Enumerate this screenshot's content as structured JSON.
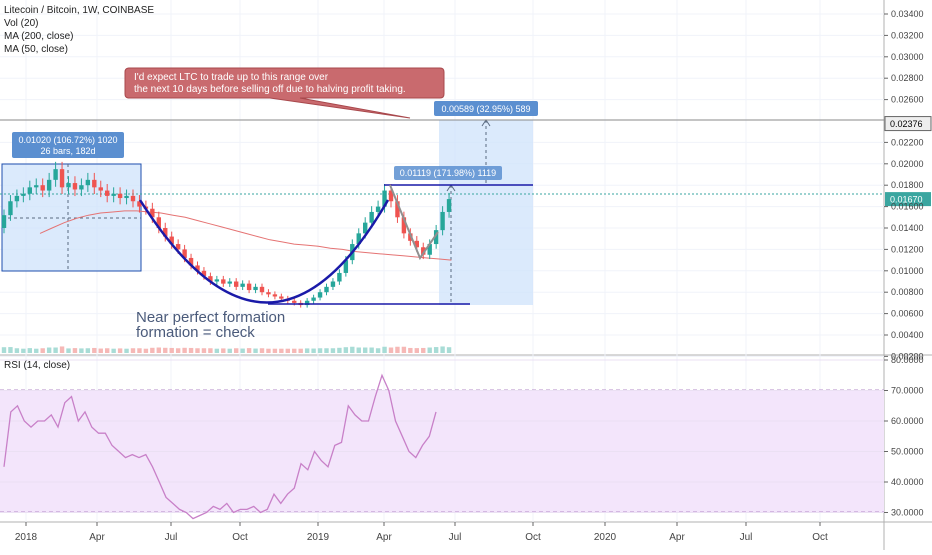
{
  "header": {
    "symbol_line": "Litecoin / Bitcoin, 1W, COINBASE",
    "indicators": [
      "Vol (20)",
      "MA (200, close)",
      "MA (50, close)"
    ],
    "rsi_label": "RSI (14, close)"
  },
  "annotations": {
    "callout_line1": "I'd expect LTC to trade up to this range over",
    "callout_line2": "the next 10 days before selling off due to halving profit taking.",
    "range_box_line1": "0.01020 (106.72%) 1020",
    "range_box_line2": "26 bars, 182d",
    "target_label": "0.00589 (32.95%) 589",
    "breakout_label": "0.01119 (171.98%) 1119",
    "note_line1": "Near perfect formation",
    "note_line2": "formation = check"
  },
  "price_axis": {
    "ticks": [
      "0.03400",
      "0.03200",
      "0.03000",
      "0.02800",
      "0.02600",
      "0.02376",
      "0.02200",
      "0.02000",
      "0.01800",
      "0.01670",
      "0.01600",
      "0.01400",
      "0.01200",
      "0.01000",
      "0.00800",
      "0.00600",
      "0.00400",
      "0.00200"
    ],
    "highlight_gray": "0.02376",
    "highlight_teal": "0.01670"
  },
  "rsi_axis": {
    "ticks": [
      "80.0000",
      "70.0000",
      "60.0000",
      "50.0000",
      "40.0000",
      "30.0000"
    ]
  },
  "time_axis": {
    "ticks": [
      "2018",
      "Apr",
      "Jul",
      "Oct",
      "2019",
      "Apr",
      "Jul",
      "Oct",
      "2020",
      "Apr",
      "Jul",
      "Oct"
    ]
  },
  "colors": {
    "up": "#26a69a",
    "down": "#ef5350",
    "cup": "#1a1aa8",
    "ma": "#e57373",
    "rsi": "#c880c8",
    "rsi_band": "#f3e5fb",
    "box": "#c8defa",
    "callout": "#c96a6e",
    "teal_line": "#3aa6a0"
  },
  "chart_data": [
    {
      "type": "candlestick",
      "title": "Litecoin / Bitcoin, 1W, COINBASE",
      "ylim": [
        0.002,
        0.035
      ],
      "x_axis_ticks": [
        "2018",
        "Apr",
        "Jul",
        "Oct",
        "2019",
        "Apr",
        "Jul",
        "Oct",
        "2020",
        "Apr",
        "Jul",
        "Oct"
      ],
      "close": [
        0.0152,
        0.0165,
        0.017,
        0.0172,
        0.0178,
        0.018,
        0.0175,
        0.0185,
        0.0195,
        0.0178,
        0.0182,
        0.0176,
        0.018,
        0.0185,
        0.0178,
        0.0175,
        0.017,
        0.0172,
        0.0168,
        0.017,
        0.0165,
        0.016,
        0.0158,
        0.015,
        0.014,
        0.0132,
        0.0125,
        0.012,
        0.0112,
        0.0105,
        0.01,
        0.0095,
        0.009,
        0.0092,
        0.0088,
        0.009,
        0.0085,
        0.0088,
        0.0082,
        0.0085,
        0.008,
        0.0078,
        0.0076,
        0.0074,
        0.0072,
        0.007,
        0.0068,
        0.0072,
        0.0075,
        0.008,
        0.0085,
        0.009,
        0.0098,
        0.011,
        0.0125,
        0.0135,
        0.0145,
        0.0155,
        0.016,
        0.0175,
        0.0165,
        0.015,
        0.0135,
        0.0128,
        0.0122,
        0.0115,
        0.0125,
        0.0138,
        0.0155,
        0.0167
      ],
      "ma50": [
        0.0135,
        0.014,
        0.0145,
        0.0149,
        0.0152,
        0.0154,
        0.0155,
        0.0156,
        0.0156,
        0.0155,
        0.0154,
        0.0152,
        0.015,
        0.0147,
        0.0144,
        0.0141,
        0.0138,
        0.0135,
        0.0132,
        0.0129,
        0.0127,
        0.0125,
        0.0124,
        0.0123,
        0.0121,
        0.012,
        0.0118,
        0.0117,
        0.0116,
        0.0115,
        0.0114,
        0.0113,
        0.0112,
        0.0111,
        0.011
      ],
      "annotations": {
        "range_measure": "0.01020 (106.72%) 1020, 26 bars, 182d",
        "target_measure": "0.00589 (32.95%) 589",
        "breakout_measure": "0.01119 (171.98%) 1119"
      }
    },
    {
      "type": "line",
      "title": "RSI (14, close)",
      "ylim": [
        28,
        82
      ],
      "bands": [
        30,
        70
      ],
      "values": [
        45,
        63,
        65,
        60,
        58,
        60,
        60,
        62,
        58,
        66,
        68,
        60,
        63,
        58,
        56,
        56,
        52,
        50,
        48,
        49,
        48,
        49,
        45,
        40,
        35,
        33,
        31,
        30,
        28,
        29,
        30,
        32,
        31,
        33,
        30,
        31,
        31,
        32,
        30,
        31,
        36,
        33,
        36,
        38,
        46,
        44,
        50,
        47,
        45,
        52,
        53,
        65,
        62,
        60,
        60,
        68,
        75,
        70,
        60,
        55,
        50,
        48,
        52,
        55,
        63
      ]
    }
  ]
}
